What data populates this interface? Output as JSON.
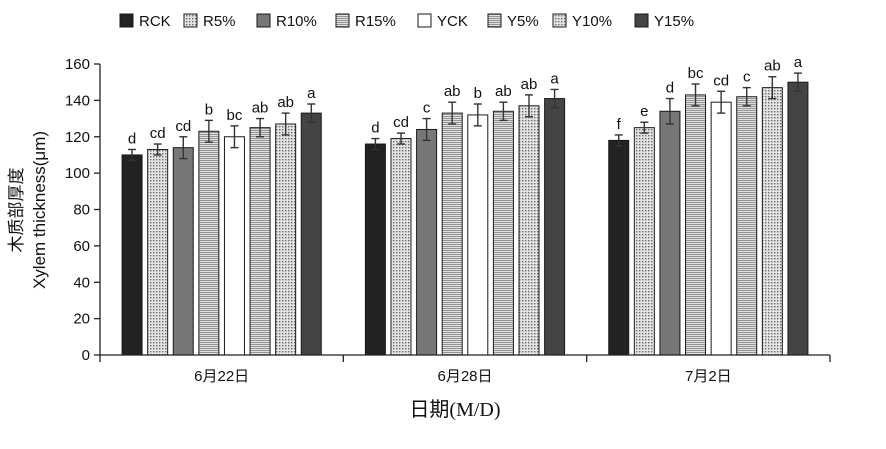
{
  "chart_data": {
    "type": "bar",
    "title": "",
    "xlabel": "日期(M/D)",
    "ylabel": "木质部厚度\nXylem thickness(μm)",
    "ylim": [
      0,
      160
    ],
    "yticks": [
      0,
      20,
      40,
      60,
      80,
      100,
      120,
      140,
      160
    ],
    "categories": [
      "6月22日",
      "6月28日",
      "7月2日"
    ],
    "legend_position": "top",
    "grid": false,
    "series": [
      {
        "name": "RCK",
        "values": [
          110,
          116,
          118
        ],
        "errors": [
          3,
          3,
          3
        ],
        "letters": [
          "d",
          "d",
          "f"
        ],
        "fill": "#222222",
        "pattern": "solid"
      },
      {
        "name": "R5%",
        "values": [
          113,
          119,
          125
        ],
        "errors": [
          3,
          3,
          3
        ],
        "letters": [
          "cd",
          "cd",
          "e"
        ],
        "fill": "#bdbdbd",
        "pattern": "dots"
      },
      {
        "name": "R10%",
        "values": [
          114,
          124,
          134
        ],
        "errors": [
          6,
          6,
          7
        ],
        "letters": [
          "cd",
          "c",
          "d"
        ],
        "fill": "#777777",
        "pattern": "solid"
      },
      {
        "name": "R15%",
        "values": [
          123,
          133,
          143
        ],
        "errors": [
          6,
          6,
          6
        ],
        "letters": [
          "b",
          "ab",
          "bc"
        ],
        "fill": "#cfcfcf",
        "pattern": "hlines"
      },
      {
        "name": "YCK",
        "values": [
          120,
          132,
          139
        ],
        "errors": [
          6,
          6,
          6
        ],
        "letters": [
          "bc",
          "b",
          "cd"
        ],
        "fill": "#ffffff",
        "pattern": "solid"
      },
      {
        "name": "Y5%",
        "values": [
          125,
          134,
          142
        ],
        "errors": [
          5,
          5,
          5
        ],
        "letters": [
          "ab",
          "ab",
          "c"
        ],
        "fill": "#c8c8c8",
        "pattern": "hlines"
      },
      {
        "name": "Y10%",
        "values": [
          127,
          137,
          147
        ],
        "errors": [
          6,
          6,
          6
        ],
        "letters": [
          "ab",
          "ab",
          "ab"
        ],
        "fill": "#d6d6d6",
        "pattern": "dots"
      },
      {
        "name": "Y15%",
        "values": [
          133,
          141,
          150
        ],
        "errors": [
          5,
          5,
          5
        ],
        "letters": [
          "a",
          "a",
          "a"
        ],
        "fill": "#444444",
        "pattern": "solid"
      }
    ]
  }
}
